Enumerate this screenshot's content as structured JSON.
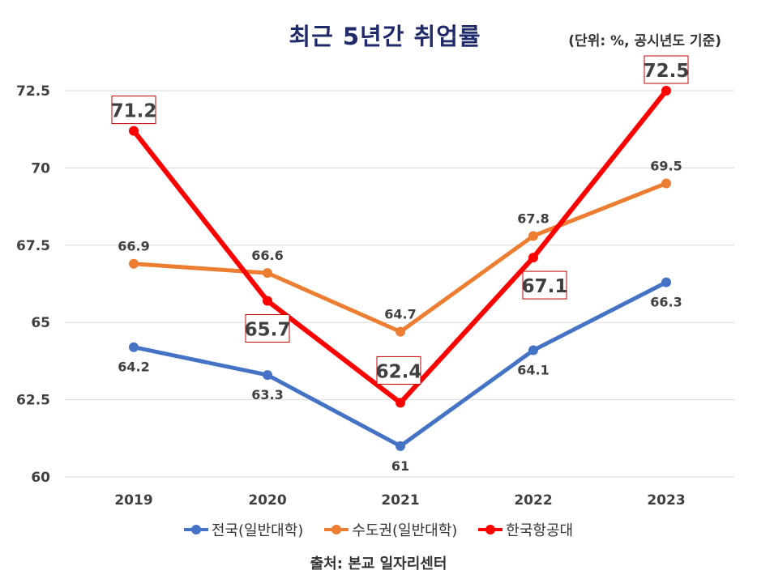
{
  "title": "최근 5년간 취업률",
  "unit_note": "(단위: %, 공시년도 기준)",
  "source": "출처: 본교 일자리센터",
  "chart_data": {
    "type": "line",
    "categories": [
      "2019",
      "2020",
      "2021",
      "2022",
      "2023"
    ],
    "ylim": [
      60,
      72.5
    ],
    "yticks": [
      "60",
      "62.5",
      "65",
      "67.5",
      "70",
      "72.5"
    ],
    "grid": true,
    "legend_position": "bottom",
    "series": [
      {
        "name": "전국(일반대학)",
        "color": "#4472c4",
        "values": [
          64.2,
          63.3,
          61,
          64.1,
          66.3
        ],
        "labels": [
          "64.2",
          "63.3",
          "61",
          "64.1",
          "66.3"
        ],
        "label_pos": [
          "below",
          "below",
          "below",
          "below",
          "below"
        ]
      },
      {
        "name": "수도권(일반대학)",
        "color": "#ed7d31",
        "values": [
          66.9,
          66.6,
          64.7,
          67.8,
          69.5
        ],
        "labels": [
          "66.9",
          "66.6",
          "64.7",
          "67.8",
          "69.5"
        ],
        "label_pos": [
          "above",
          "above",
          "above",
          "above",
          "above"
        ]
      },
      {
        "name": "한국항공대",
        "color": "#ff0000",
        "values": [
          71.2,
          65.7,
          62.4,
          67.1,
          72.5
        ],
        "labels": [
          "71.2",
          "65.7",
          "62.4",
          "67.1",
          "72.5"
        ],
        "boxed": true
      }
    ]
  }
}
